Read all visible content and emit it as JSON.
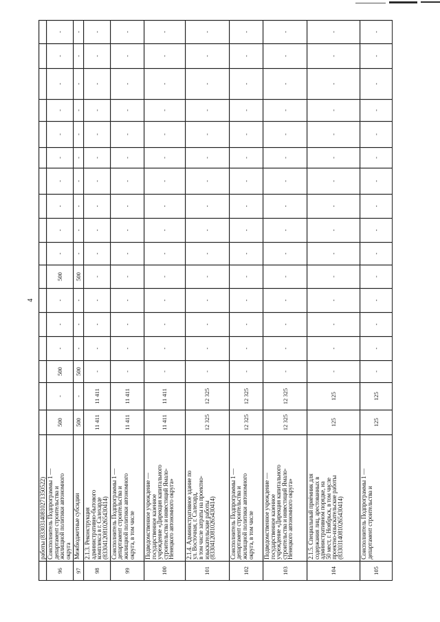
{
  "page": {
    "number": "4"
  },
  "table": {
    "rows": [
      {
        "num": "",
        "name": "работы (83303140810271350522)",
        "values": [
          "",
          "",
          "",
          "",
          "",
          "",
          "",
          "",
          "",
          "",
          "",
          "",
          "",
          "",
          "",
          "",
          ""
        ]
      },
      {
        "num": "96",
        "name": "Соисполнитель Подпрограммы 1 —\nдепартамент строительства и\nжилищной политики автономного\nокруга",
        "values": [
          "500",
          "-",
          "500",
          "-",
          "-",
          "-",
          "500",
          "-",
          "-",
          "-",
          "-",
          "-",
          "-",
          "-",
          "-",
          "-",
          "-"
        ]
      },
      {
        "num": "97",
        "name": "Межбюджетные субсидии",
        "values": [
          "500",
          "-",
          "500",
          "-",
          "-",
          "-",
          "500",
          "-",
          "-",
          "-",
          "-",
          "-",
          "-",
          "-",
          "-",
          "-",
          "-"
        ]
      },
      {
        "num": "98",
        "name": "2.1.3. Реконструкция\nадминистративно-бытового\nкомплекса в г. Салехарде\n(83304120810265430414)",
        "values": [
          "11 411",
          "11 411",
          "-",
          "-",
          "-",
          "-",
          "-",
          "-",
          "-",
          "-",
          "-",
          "-",
          "-",
          "-",
          "-",
          "-",
          "-"
        ]
      },
      {
        "num": "99",
        "name": "Соисполнитель Подпрограммы 1 —\nдепартамент строительства и\nжилищной политики автономного\nокруга, в том числе",
        "values": [
          "11 411",
          "11 411",
          "-",
          "-",
          "-",
          "-",
          "-",
          "-",
          "-",
          "-",
          "-",
          "-",
          "-",
          "-",
          "-",
          "-",
          "-"
        ]
      },
      {
        "num": "100",
        "name": "Подведомственное учреждение —\nгосударственное казенное\nучреждение «Дирекция капитального\nстроительства и инвестиций Ямало-\nНенецкого автономного округа»",
        "values": [
          "11 411",
          "11 411",
          "-",
          "-",
          "-",
          "-",
          "-",
          "-",
          "-",
          "-",
          "-",
          "-",
          "-",
          "-",
          "-",
          "-",
          "-"
        ]
      },
      {
        "num": "101",
        "name": "2.1.4. Административное здание по\nул. Восточная, г. Салехард,\nв том числе затраты на проектно-\nизыскательские работы\n(83304120810265430414)",
        "values": [
          "12 325",
          "12 325",
          "-",
          "-",
          "-",
          "-",
          "-",
          "-",
          "-",
          "-",
          "-",
          "-",
          "-",
          "-",
          "-",
          "-",
          "-"
        ]
      },
      {
        "num": "102",
        "name": "Соисполнитель Подпрограммы 1 —\nдепартамент строительства и\nжилищной политики автономного\nокруга, в том числе",
        "values": [
          "12 325",
          "12 325",
          "-",
          "-",
          "-",
          "-",
          "-",
          "-",
          "-",
          "-",
          "-",
          "-",
          "-",
          "-",
          "-",
          "-",
          "-"
        ]
      },
      {
        "num": "103",
        "name": "Подведомственное учреждение —\nгосударственное казенное\nучреждение «Дирекция капитального\nстроительства и инвестиций Ямало-\nНенецкого автономного округа»",
        "values": [
          "12 325",
          "12 325",
          "-",
          "-",
          "-",
          "-",
          "-",
          "-",
          "-",
          "-",
          "-",
          "-",
          "-",
          "-",
          "-",
          "-",
          "-"
        ]
      },
      {
        "num": "104",
        "name": "2.1.5. Специальный приёмник для\nсодержания лиц, арестованных в\nадминистративном порядке, на\n50 мест, г. Ноябрьск, в том числе\nпроектно-изыскательские работы\n(83303140810265430414)",
        "values": [
          "125",
          "125",
          "-",
          "-",
          "-",
          "-",
          "-",
          "-",
          "-",
          "-",
          "-",
          "-",
          "-",
          "-",
          "-",
          "-",
          "-"
        ]
      },
      {
        "num": "105",
        "name": "Соисполнитель Подпрограммы 1 —\nдепартамент строительства и",
        "values": [
          "125",
          "125",
          "-",
          "-",
          "-",
          "-",
          "-",
          "-",
          "-",
          "-",
          "-",
          "-",
          "-",
          "-",
          "-",
          "-",
          "-"
        ]
      }
    ]
  }
}
